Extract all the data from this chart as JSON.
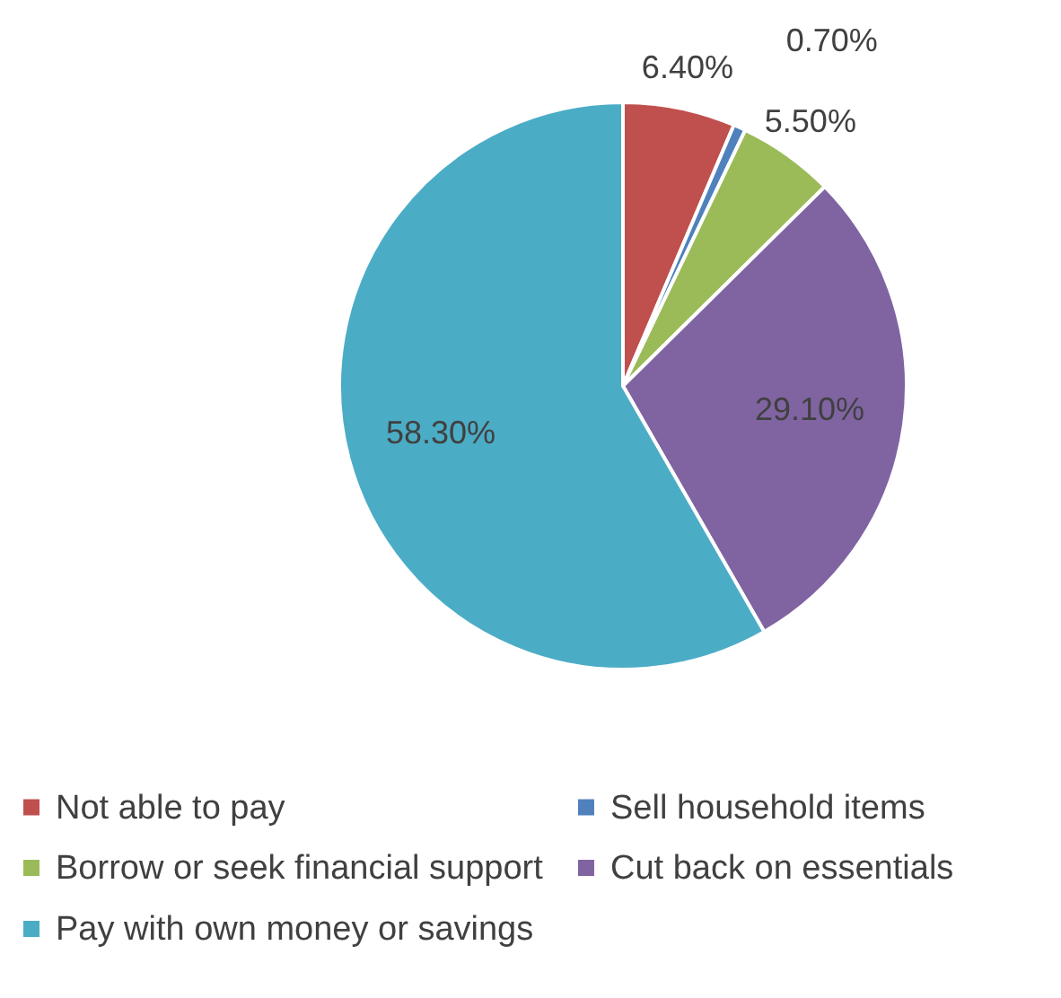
{
  "chart_data": {
    "type": "pie",
    "categories": [
      "Not able to pay",
      "Sell household items",
      "Borrow or seek financial support",
      "Cut back on essentials",
      "Pay with own money or savings"
    ],
    "values": [
      6.4,
      0.7,
      5.5,
      29.1,
      58.3
    ],
    "colors": [
      "#c0504d",
      "#4f81bd",
      "#9bbb59",
      "#8064a2",
      "#4bacc6"
    ],
    "value_labels": [
      "6.40%",
      "0.70%",
      "5.50%",
      "29.10%",
      "58.30%"
    ],
    "legend": "bottom"
  }
}
